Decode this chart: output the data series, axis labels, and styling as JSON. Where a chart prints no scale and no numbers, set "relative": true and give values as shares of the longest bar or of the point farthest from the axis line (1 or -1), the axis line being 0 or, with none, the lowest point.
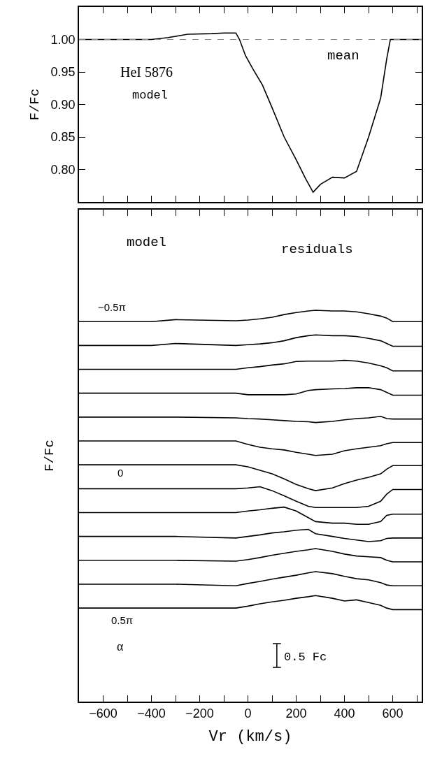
{
  "chart_data": [
    {
      "type": "line",
      "ylabel": "F/Fc",
      "x": [
        -700,
        -400,
        -330,
        -250,
        -150,
        -100,
        -50,
        -35,
        -10,
        20,
        60,
        100,
        150,
        200,
        240,
        270,
        300,
        350,
        400,
        450,
        500,
        550,
        575,
        590,
        600,
        720
      ],
      "series": [
        {
          "color": "#000000",
          "values": [
            1.0,
            1.0,
            1.003,
            1.008,
            1.009,
            1.01,
            1.01,
            1.0,
            0.975,
            0.955,
            0.93,
            0.895,
            0.85,
            0.815,
            0.785,
            0.765,
            0.777,
            0.788,
            0.787,
            0.797,
            0.85,
            0.91,
            0.97,
            1.0,
            1.0,
            1.0
          ]
        }
      ],
      "xlim": [
        -700,
        720
      ],
      "ylim": [
        0.75,
        1.05
      ],
      "xticks": [
        {
          "value": -600,
          "label": null
        },
        {
          "value": -500,
          "label": null
        },
        {
          "value": -400,
          "label": null
        },
        {
          "value": -300,
          "label": null
        },
        {
          "value": -200,
          "label": null
        },
        {
          "value": -100,
          "label": null
        },
        {
          "value": 0,
          "label": null
        },
        {
          "value": 100,
          "label": null
        },
        {
          "value": 200,
          "label": null
        },
        {
          "value": 300,
          "label": null
        },
        {
          "value": 400,
          "label": null
        },
        {
          "value": 500,
          "label": null
        },
        {
          "value": 600,
          "label": null
        },
        {
          "value": 700,
          "label": null
        }
      ],
      "yticks": [
        {
          "value": 0.8,
          "label": "0.80"
        },
        {
          "value": 0.85,
          "label": "0.85"
        },
        {
          "value": 0.9,
          "label": "0.90"
        },
        {
          "value": 0.95,
          "label": "0.95"
        },
        {
          "value": 1.0,
          "label": "1.00"
        }
      ],
      "ref_lines": [
        {
          "axis": "y",
          "value": 1.0,
          "color": "#888888",
          "line_style": "dashed"
        }
      ],
      "annotations": [
        "HeI 5876",
        "model",
        "mean"
      ],
      "tick_labels": "y",
      "marker": "none",
      "line_style": "solid"
    },
    {
      "type": "line",
      "relative": true,
      "ylabel": "F/Fc",
      "xlabel": "Vr (km/s)",
      "x": [
        -700,
        -400,
        -300,
        -50,
        0,
        50,
        100,
        150,
        200,
        250,
        280,
        350,
        400,
        450,
        500,
        550,
        575,
        600,
        720
      ],
      "series": [
        {
          "color": "#000000",
          "values": [
            0.971,
            0.971,
            0.976,
            0.973,
            0.975,
            0.978,
            0.982,
            0.989,
            0.994,
            0.998,
            1.0,
            0.998,
            0.998,
            0.996,
            0.991,
            0.985,
            0.98,
            0.971,
            0.971
          ]
        },
        {
          "color": "#000000",
          "values": [
            0.91,
            0.91,
            0.915,
            0.91,
            0.912,
            0.914,
            0.917,
            0.922,
            0.93,
            0.935,
            0.937,
            0.935,
            0.935,
            0.933,
            0.928,
            0.922,
            0.915,
            0.908,
            0.908
          ]
        },
        {
          "color": "#000000",
          "values": [
            0.849,
            0.849,
            0.849,
            0.849,
            0.853,
            0.856,
            0.86,
            0.863,
            0.869,
            0.87,
            0.87,
            0.87,
            0.872,
            0.87,
            0.865,
            0.858,
            0.853,
            0.845,
            0.845
          ]
        },
        {
          "color": "#000000",
          "values": [
            0.788,
            0.788,
            0.788,
            0.788,
            0.784,
            0.784,
            0.784,
            0.784,
            0.786,
            0.795,
            0.797,
            0.799,
            0.8,
            0.802,
            0.802,
            0.797,
            0.79,
            0.783,
            0.783
          ]
        },
        {
          "color": "#000000",
          "values": [
            0.727,
            0.727,
            0.727,
            0.725,
            0.723,
            0.722,
            0.72,
            0.718,
            0.716,
            0.715,
            0.713,
            0.716,
            0.72,
            0.723,
            0.725,
            0.729,
            0.723,
            0.722,
            0.722
          ]
        },
        {
          "color": "#000000",
          "values": [
            0.666,
            0.666,
            0.666,
            0.666,
            0.657,
            0.65,
            0.646,
            0.643,
            0.637,
            0.632,
            0.629,
            0.632,
            0.641,
            0.646,
            0.65,
            0.654,
            0.659,
            0.662,
            0.662
          ]
        },
        {
          "color": "#000000",
          "values": [
            0.605,
            0.605,
            0.605,
            0.605,
            0.6,
            0.591,
            0.582,
            0.569,
            0.555,
            0.544,
            0.539,
            0.546,
            0.557,
            0.566,
            0.573,
            0.582,
            0.594,
            0.603,
            0.603
          ]
        },
        {
          "color": "#000000",
          "values": [
            0.544,
            0.544,
            0.544,
            0.544,
            0.546,
            0.549,
            0.539,
            0.526,
            0.512,
            0.499,
            0.496,
            0.496,
            0.496,
            0.496,
            0.499,
            0.512,
            0.53,
            0.542,
            0.542
          ]
        },
        {
          "color": "#000000",
          "values": [
            0.483,
            0.483,
            0.483,
            0.483,
            0.487,
            0.49,
            0.494,
            0.497,
            0.487,
            0.47,
            0.46,
            0.456,
            0.456,
            0.453,
            0.453,
            0.46,
            0.476,
            0.479,
            0.479
          ]
        },
        {
          "color": "#000000",
          "values": [
            0.422,
            0.422,
            0.422,
            0.418,
            0.422,
            0.426,
            0.431,
            0.434,
            0.438,
            0.44,
            0.429,
            0.422,
            0.417,
            0.413,
            0.409,
            0.411,
            0.417,
            0.418,
            0.418
          ]
        },
        {
          "color": "#000000",
          "values": [
            0.361,
            0.361,
            0.361,
            0.359,
            0.363,
            0.368,
            0.374,
            0.379,
            0.384,
            0.388,
            0.391,
            0.384,
            0.377,
            0.372,
            0.37,
            0.368,
            0.361,
            0.357,
            0.357
          ]
        },
        {
          "color": "#000000",
          "values": [
            0.3,
            0.3,
            0.3,
            0.296,
            0.302,
            0.307,
            0.313,
            0.318,
            0.323,
            0.329,
            0.332,
            0.327,
            0.32,
            0.314,
            0.311,
            0.304,
            0.298,
            0.296,
            0.296
          ]
        },
        {
          "color": "#000000",
          "values": [
            0.239,
            0.239,
            0.239,
            0.239,
            0.244,
            0.25,
            0.255,
            0.259,
            0.264,
            0.268,
            0.271,
            0.264,
            0.257,
            0.26,
            0.253,
            0.246,
            0.239,
            0.235,
            0.235
          ]
        }
      ],
      "xlim": [
        -700,
        720
      ],
      "xticks": [
        -600,
        {
          "value": -500,
          "label": null
        },
        -400,
        {
          "value": -300,
          "label": null
        },
        -200,
        {
          "value": -100,
          "label": null
        },
        0,
        {
          "value": 100,
          "label": null
        },
        200,
        {
          "value": 300,
          "label": null
        },
        400,
        {
          "value": 500,
          "label": null
        },
        600,
        {
          "value": 700,
          "label": null
        }
      ],
      "annotations": [
        "model",
        "residuals",
        "−0.5π",
        "0",
        "0.5π",
        "α",
        "0.5 Fc"
      ],
      "tick_labels": "x",
      "marker": "none",
      "line_style": "solid"
    }
  ]
}
